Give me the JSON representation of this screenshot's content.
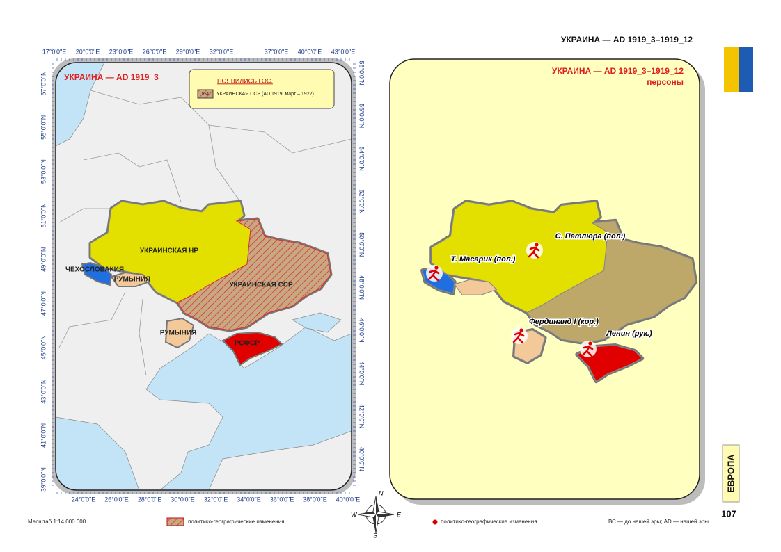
{
  "header": {
    "title": "УКРАИНА — AD 1919_3–1919_12"
  },
  "left_map": {
    "title": "УКРАИНА — AD 1919_3",
    "legend": {
      "heading": "ПОЯВИЛИСЬ ГОС.",
      "code": "554",
      "item": "УКРАИНСКАЯ ССР (AD 1919, март – 1922)"
    },
    "top_longitudes": [
      "17°0'0\"E",
      "20°0'0\"E",
      "23°0'0\"E",
      "26°0'0\"E",
      "29°0'0\"E",
      "32°0'0\"E",
      "37°0'0\"E",
      "40°0'0\"E",
      "43°0'0\"E"
    ],
    "bottom_longitudes": [
      "24°0'0\"E",
      "26°0'0\"E",
      "28°0'0\"E",
      "30°0'0\"E",
      "32°0'0\"E",
      "34°0'0\"E",
      "36°0'0\"E",
      "38°0'0\"E",
      "40°0'0\"E"
    ],
    "left_latitudes": [
      "57°0'0\"N",
      "55°0'0\"N",
      "53°0'0\"N",
      "51°0'0\"N",
      "49°0'0\"N",
      "47°0'0\"N",
      "45°0'0\"N",
      "43°0'0\"N",
      "41°0'0\"N",
      "39°0'0\"N"
    ],
    "right_latitudes": [
      "58°0'0\"N",
      "56°0'0\"N",
      "54°0'0\"N",
      "52°0'0\"N",
      "50°0'0\"N",
      "48°0'0\"N",
      "46°0'0\"N",
      "44°0'0\"N",
      "42°0'0\"N",
      "40°0'0\"N"
    ],
    "regions": [
      {
        "label": "УКРАИНСКАЯ НР"
      },
      {
        "label": "ЧЕХОСЛОВАКИЯ"
      },
      {
        "label": "РУМЫНИЯ"
      },
      {
        "label": "УКРАИНСКАЯ ССР"
      },
      {
        "label": "РУМЫНИЯ"
      },
      {
        "label": "РСФСР"
      }
    ]
  },
  "right_map": {
    "title": "УКРАИНА — AD 1919_3–1919_12",
    "subtitle": "персоны",
    "persons": [
      {
        "label": "С. Петлюра (пол.)"
      },
      {
        "label": "Т. Масарик (пол.)"
      },
      {
        "label": "Фердинанд I (кор.)"
      },
      {
        "label": "Ленин (рук.)"
      }
    ]
  },
  "compass": {
    "n": "N",
    "e": "E",
    "s": "S",
    "w": "W"
  },
  "sidebar": {
    "section": "ЕВРОПА",
    "page": "107"
  },
  "footer": {
    "scale": "Масштаб 1:14 000 000",
    "hatch_legend": "политико-географические изменения",
    "dot_legend": "политико-географические изменения",
    "era_note": "ВС — до нашей эры; AD — нашей эры"
  }
}
